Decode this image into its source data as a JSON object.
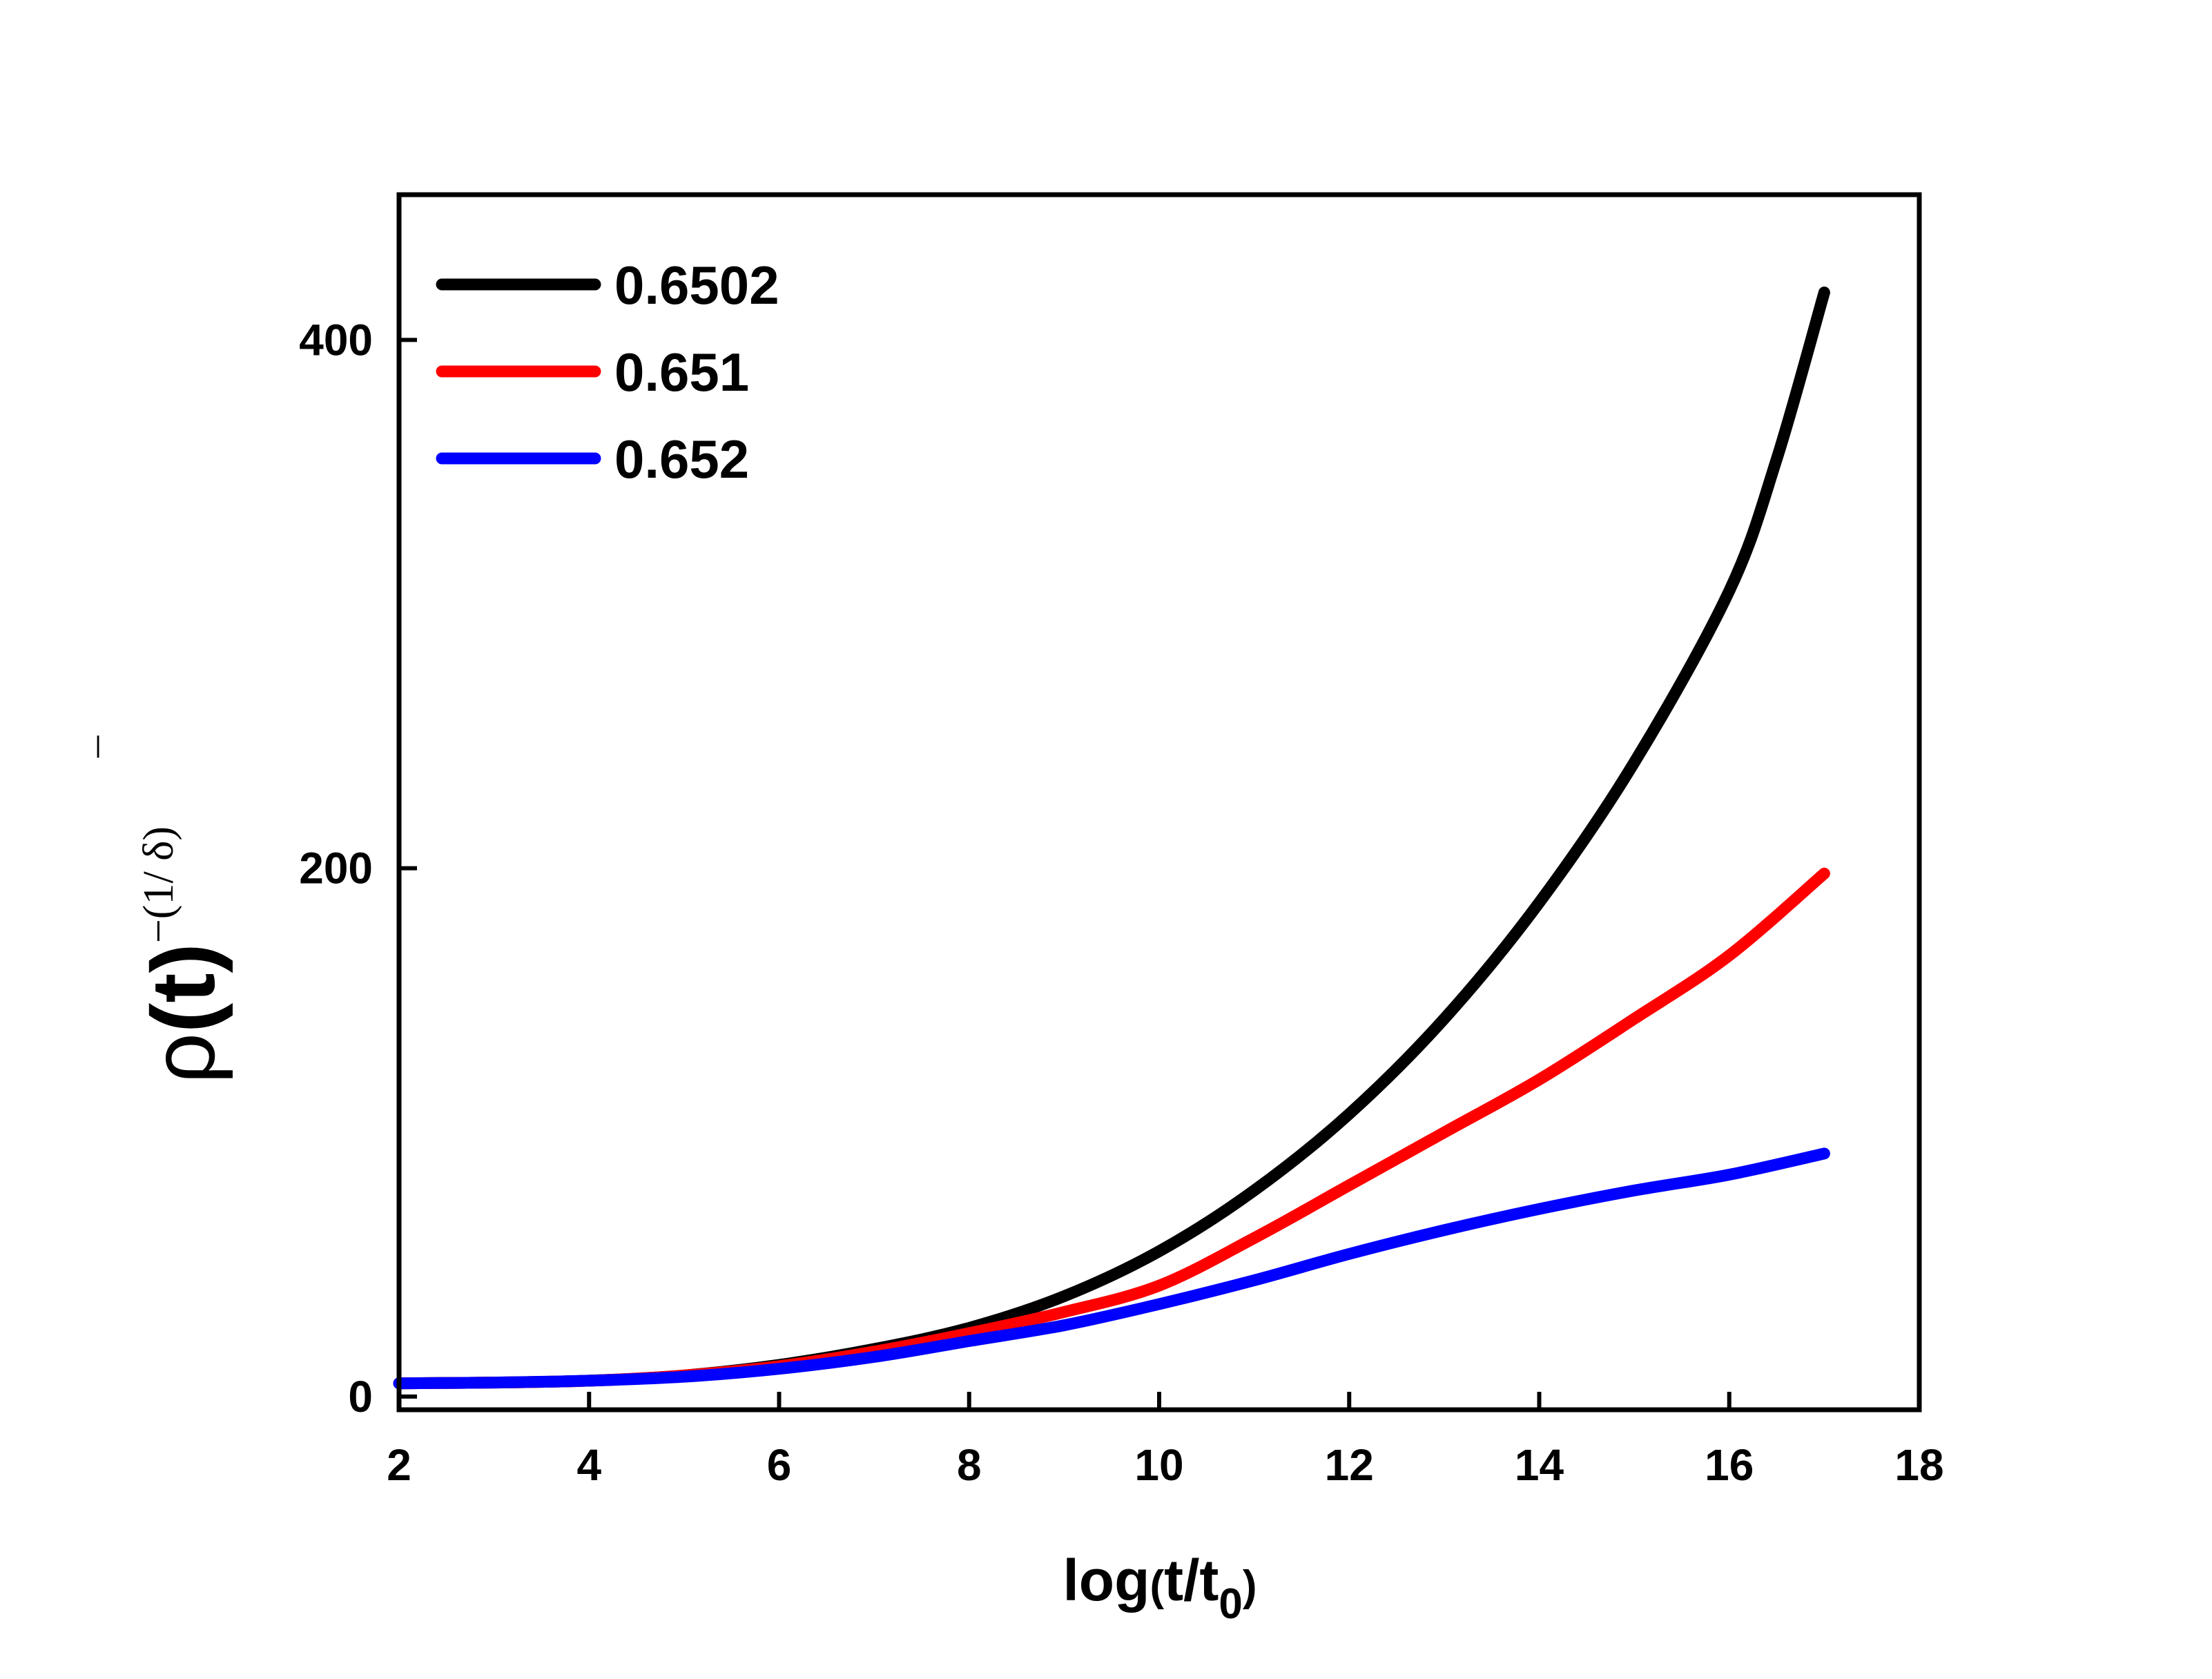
{
  "chart_data": {
    "type": "line",
    "title": "",
    "xlabel": {
      "main": "log",
      "open": "(",
      "text": "t/t",
      "sub": "0",
      "close": ")"
    },
    "ylabel": {
      "rho": "ρ",
      "paren": "(t)",
      "sup_left": "−(1/ ",
      "delta": "δ",
      "bar": "¯",
      "sup_right": ")"
    },
    "xlim": [
      2,
      18
    ],
    "ylim": [
      -5,
      455
    ],
    "xticks": [
      2,
      4,
      6,
      8,
      10,
      12,
      14,
      16,
      18
    ],
    "yticks": [
      0,
      200,
      400
    ],
    "grid": false,
    "legend_position": "top-left",
    "series": [
      {
        "name": "0.6502",
        "color": "#000000",
        "x": [
          2,
          3,
          4,
          5,
          6,
          7,
          8,
          9,
          10,
          11,
          12,
          13,
          14,
          15,
          16,
          16.5,
          17
        ],
        "y": [
          5,
          5.3,
          6,
          8,
          12,
          18,
          26,
          38,
          55,
          78,
          107,
          143,
          187,
          240,
          305,
          355,
          418
        ]
      },
      {
        "name": "0.651",
        "color": "#ff0000",
        "x": [
          2,
          3,
          4,
          5,
          6,
          7,
          8,
          9,
          10,
          11,
          12,
          13,
          14,
          15,
          16,
          17
        ],
        "y": [
          5,
          5.3,
          6,
          8,
          11.5,
          17,
          24,
          32,
          42,
          60,
          80,
          100,
          120,
          143,
          167,
          198
        ]
      },
      {
        "name": "0.652",
        "color": "#0000ff",
        "x": [
          2,
          3,
          4,
          5,
          6,
          7,
          8,
          9,
          10,
          11,
          12,
          13,
          14,
          15,
          16,
          17
        ],
        "y": [
          5,
          5.3,
          6,
          7.5,
          10.5,
          15,
          21,
          27,
          35,
          44,
          54,
          63,
          71,
          78,
          84,
          92
        ]
      }
    ]
  }
}
